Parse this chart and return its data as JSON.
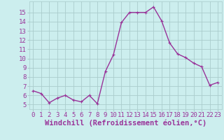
{
  "x": [
    0,
    1,
    2,
    3,
    4,
    5,
    6,
    7,
    8,
    9,
    10,
    11,
    12,
    13,
    14,
    15,
    16,
    17,
    18,
    19,
    20,
    21,
    22,
    23
  ],
  "y": [
    6.5,
    6.2,
    5.2,
    5.7,
    6.0,
    5.5,
    5.3,
    6.0,
    5.1,
    8.6,
    10.4,
    13.9,
    15.0,
    15.0,
    15.0,
    15.6,
    14.1,
    11.7,
    10.5,
    10.1,
    9.5,
    9.1,
    7.1,
    7.4
  ],
  "line_color": "#993399",
  "marker": "+",
  "marker_size": 3,
  "background_color": "#cceeee",
  "grid_color": "#aacccc",
  "xlabel": "Windchill (Refroidissement éolien,°C)",
  "title": "",
  "xlim": [
    -0.5,
    23.5
  ],
  "ylim": [
    4.5,
    16.2
  ],
  "xtick_labels": [
    "0",
    "1",
    "2",
    "3",
    "4",
    "5",
    "6",
    "7",
    "8",
    "9",
    "10",
    "11",
    "12",
    "13",
    "14",
    "15",
    "16",
    "17",
    "18",
    "19",
    "20",
    "21",
    "22",
    "23"
  ],
  "ytick_vals": [
    5,
    6,
    7,
    8,
    9,
    10,
    11,
    12,
    13,
    14,
    15
  ],
  "xlabel_fontsize": 7.5,
  "tick_fontsize": 6.5,
  "line_width": 1.0,
  "text_color": "#993399"
}
